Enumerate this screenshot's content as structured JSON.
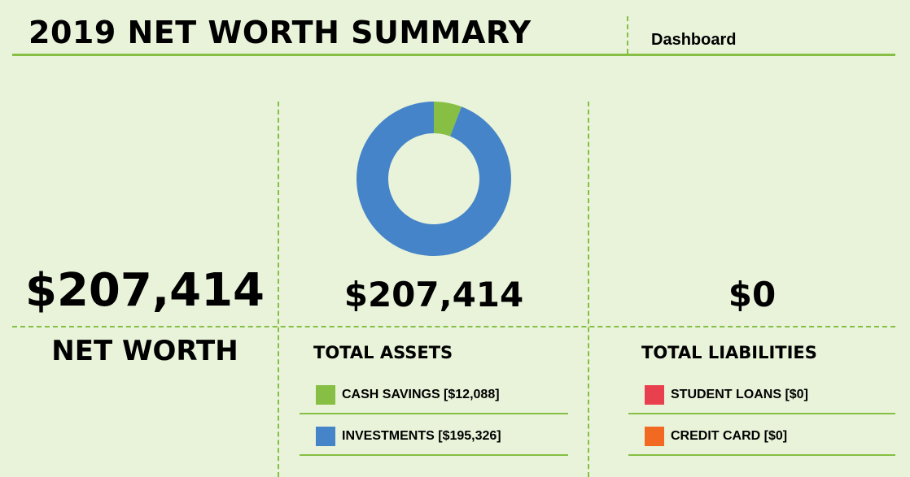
{
  "header": {
    "title": "2019 NET WORTH SUMMARY",
    "dashboard_label": "Dashboard"
  },
  "net_worth": {
    "value": "$207,414",
    "label": "NET WORTH"
  },
  "assets": {
    "total": "$207,414",
    "label": "TOTAL ASSETS",
    "items": [
      {
        "label": "CASH SAVINGS [$12,088]",
        "color": "#86bf43"
      },
      {
        "label": "INVESTMENTS [$195,326]",
        "color": "#4584c8"
      }
    ]
  },
  "liabilities": {
    "total": "$0",
    "label": "TOTAL LIABILITIES",
    "items": [
      {
        "label": "STUDENT LOANS [$0]",
        "color": "#e8404f"
      },
      {
        "label": "CREDIT CARD [$0]",
        "color": "#f26a22"
      }
    ]
  },
  "chart_data": {
    "type": "pie",
    "variant": "donut",
    "categories": [
      "CASH SAVINGS",
      "INVESTMENTS"
    ],
    "values": [
      12088,
      195326
    ],
    "colors": [
      "#86bf43",
      "#4584c8"
    ]
  }
}
